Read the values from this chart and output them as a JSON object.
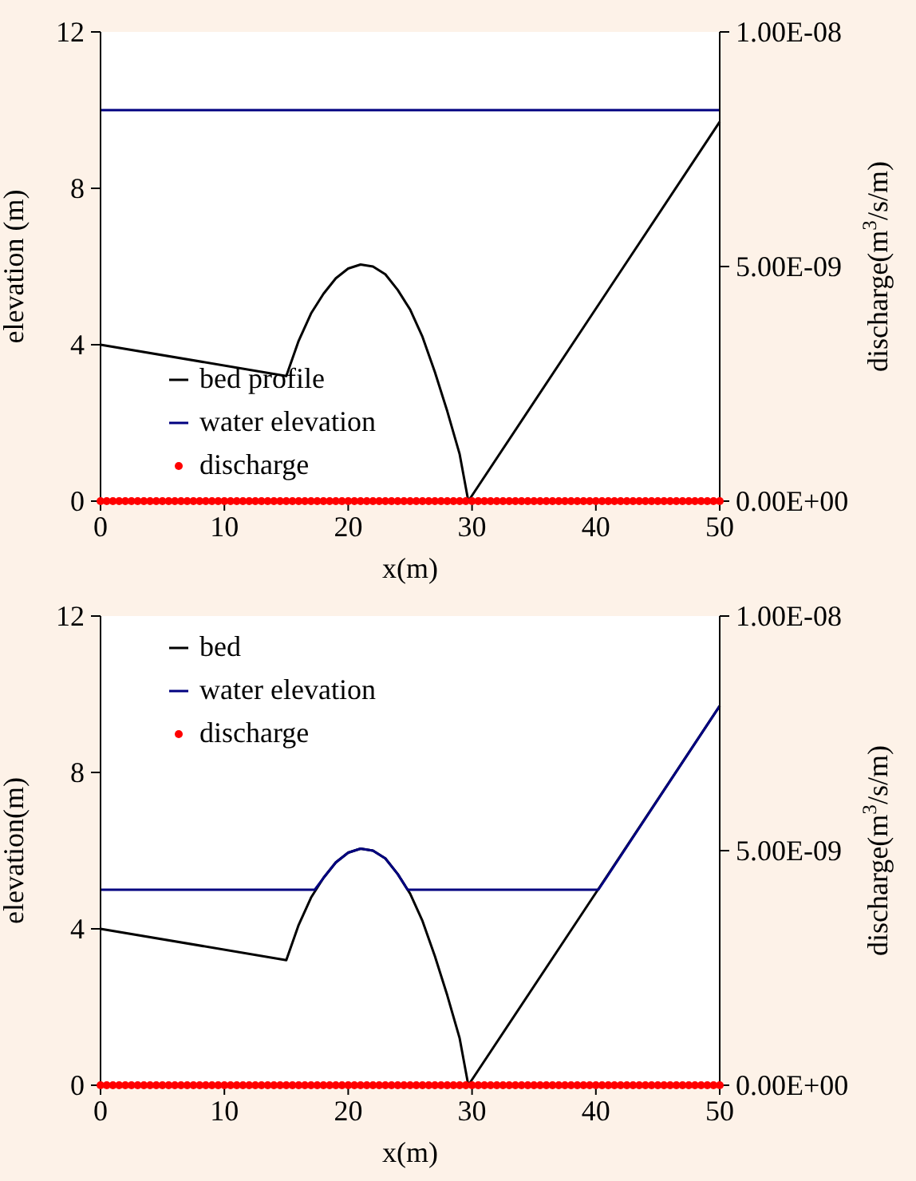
{
  "chart_data": [
    {
      "type": "line",
      "xlabel": "x(m)",
      "ylabel": "elevation (m)",
      "y2label": "discharge(m$^{3}$/s/m)",
      "xlim": [
        0,
        50
      ],
      "xticks": [
        0,
        10,
        20,
        30,
        40,
        50
      ],
      "ylim": [
        0,
        12
      ],
      "yticks": [
        0,
        4,
        8,
        12
      ],
      "y2lim": [
        0,
        1e-08
      ],
      "y2ticks": [
        {
          "value": 0,
          "label": "0.00E+00"
        },
        {
          "value": 5e-09,
          "label": "5.00E-09"
        },
        {
          "value": 1e-08,
          "label": "1.00E-08"
        }
      ],
      "legend": "bottom left",
      "grid": false,
      "series": [
        {
          "name": "bed profile",
          "color": "#000000",
          "x": [
            0,
            15,
            16,
            17,
            18,
            19,
            20,
            21,
            22,
            23,
            24,
            25,
            26,
            27,
            28,
            29,
            29.7,
            50
          ],
          "values": [
            4,
            3.2,
            4.1,
            4.8,
            5.3,
            5.7,
            5.95,
            6.05,
            6.0,
            5.8,
            5.4,
            4.9,
            4.2,
            3.3,
            2.3,
            1.2,
            0,
            9.7
          ]
        },
        {
          "name": "water elevation",
          "color": "#000080",
          "x": [
            0,
            50
          ],
          "values": [
            10,
            10
          ]
        },
        {
          "name": "discharge",
          "type": "scatter",
          "axis": "y2",
          "color": "#ff0000",
          "marker": "circle",
          "x": [
            0,
            0.5,
            1,
            1.5,
            2,
            2.5,
            3,
            3.5,
            4,
            4.5,
            5,
            5.5,
            6,
            6.5,
            7,
            7.5,
            8,
            8.5,
            9,
            9.5,
            10,
            10.5,
            11,
            11.5,
            12,
            12.5,
            13,
            13.5,
            14,
            14.5,
            15,
            15.5,
            16,
            16.5,
            17,
            17.5,
            18,
            18.5,
            19,
            19.5,
            20,
            20.5,
            21,
            21.5,
            22,
            22.5,
            23,
            23.5,
            24,
            24.5,
            25,
            25.5,
            26,
            26.5,
            27,
            27.5,
            28,
            28.5,
            29,
            29.5,
            30,
            30.5,
            31,
            31.5,
            32,
            32.5,
            33,
            33.5,
            34,
            34.5,
            35,
            35.5,
            36,
            36.5,
            37,
            37.5,
            38,
            38.5,
            39,
            39.5,
            40,
            40.5,
            41,
            41.5,
            42,
            42.5,
            43,
            43.5,
            44,
            44.5,
            45,
            45.5,
            46,
            46.5,
            47,
            47.5,
            48,
            48.5,
            49,
            49.5,
            50
          ],
          "values": [
            0,
            0,
            0,
            0,
            0,
            0,
            0,
            0,
            0,
            0,
            0,
            0,
            0,
            0,
            0,
            0,
            0,
            0,
            0,
            0,
            0,
            0,
            0,
            0,
            0,
            0,
            0,
            0,
            0,
            0,
            0,
            0,
            0,
            0,
            0,
            0,
            0,
            0,
            0,
            0,
            0,
            0,
            0,
            0,
            0,
            0,
            0,
            0,
            0,
            0,
            0,
            0,
            0,
            0,
            0,
            0,
            0,
            0,
            0,
            0,
            0,
            0,
            0,
            0,
            0,
            0,
            0,
            0,
            0,
            0,
            0,
            0,
            0,
            0,
            0,
            0,
            0,
            0,
            0,
            0,
            0,
            0,
            0,
            0,
            0,
            0,
            0,
            0,
            0,
            0,
            0,
            0,
            0,
            0,
            0,
            0,
            0,
            0,
            0,
            0,
            0
          ]
        }
      ]
    },
    {
      "type": "line",
      "xlabel": "x(m)",
      "ylabel": "elevation(m)",
      "y2label": "discharge(m$^{3}$/s/m)",
      "xlim": [
        0,
        50
      ],
      "xticks": [
        0,
        10,
        20,
        30,
        40,
        50
      ],
      "ylim": [
        0,
        12
      ],
      "yticks": [
        0,
        4,
        8,
        12
      ],
      "y2lim": [
        0,
        1e-08
      ],
      "y2ticks": [
        {
          "value": 0,
          "label": "0.00E+00"
        },
        {
          "value": 5e-09,
          "label": "5.00E-09"
        },
        {
          "value": 1e-08,
          "label": "1.00E-08"
        }
      ],
      "legend": "top left",
      "grid": false,
      "series": [
        {
          "name": "bed",
          "color": "#000000",
          "x": [
            0,
            15,
            16,
            17,
            18,
            19,
            20,
            21,
            22,
            23,
            24,
            25,
            26,
            27,
            28,
            29,
            29.7,
            50
          ],
          "values": [
            4,
            3.2,
            4.1,
            4.8,
            5.3,
            5.7,
            5.95,
            6.05,
            6.0,
            5.8,
            5.4,
            4.9,
            4.2,
            3.3,
            2.3,
            1.2,
            0,
            9.7
          ]
        },
        {
          "name": "water elevation",
          "color": "#000080",
          "x": [
            0,
            17.3,
            18,
            19,
            20,
            21,
            22,
            23,
            24,
            24.8,
            40.2,
            50
          ],
          "values": [
            5,
            5,
            5.3,
            5.7,
            5.95,
            6.05,
            6.0,
            5.8,
            5.4,
            5,
            5,
            9.7
          ]
        },
        {
          "name": "discharge",
          "type": "scatter",
          "axis": "y2",
          "color": "#ff0000",
          "marker": "circle",
          "x": [
            0,
            0.5,
            1,
            1.5,
            2,
            2.5,
            3,
            3.5,
            4,
            4.5,
            5,
            5.5,
            6,
            6.5,
            7,
            7.5,
            8,
            8.5,
            9,
            9.5,
            10,
            10.5,
            11,
            11.5,
            12,
            12.5,
            13,
            13.5,
            14,
            14.5,
            15,
            15.5,
            16,
            16.5,
            17,
            17.5,
            18,
            18.5,
            19,
            19.5,
            20,
            20.5,
            21,
            21.5,
            22,
            22.5,
            23,
            23.5,
            24,
            24.5,
            25,
            25.5,
            26,
            26.5,
            27,
            27.5,
            28,
            28.5,
            29,
            29.5,
            30,
            30.5,
            31,
            31.5,
            32,
            32.5,
            33,
            33.5,
            34,
            34.5,
            35,
            35.5,
            36,
            36.5,
            37,
            37.5,
            38,
            38.5,
            39,
            39.5,
            40,
            40.5,
            41,
            41.5,
            42,
            42.5,
            43,
            43.5,
            44,
            44.5,
            45,
            45.5,
            46,
            46.5,
            47,
            47.5,
            48,
            48.5,
            49,
            49.5,
            50
          ],
          "values": [
            0,
            0,
            0,
            0,
            0,
            0,
            0,
            0,
            0,
            0,
            0,
            0,
            0,
            0,
            0,
            0,
            0,
            0,
            0,
            0,
            0,
            0,
            0,
            0,
            0,
            0,
            0,
            0,
            0,
            0,
            0,
            0,
            0,
            0,
            0,
            0,
            0,
            0,
            0,
            0,
            0,
            0,
            0,
            0,
            0,
            0,
            0,
            0,
            0,
            0,
            0,
            0,
            0,
            0,
            0,
            0,
            0,
            0,
            0,
            0,
            0,
            0,
            0,
            0,
            0,
            0,
            0,
            0,
            0,
            0,
            0,
            0,
            0,
            0,
            0,
            0,
            0,
            0,
            0,
            0,
            0,
            0,
            0,
            0,
            0,
            0,
            0,
            0,
            0,
            0,
            0,
            0,
            0,
            0,
            0,
            0,
            0,
            0,
            0,
            0,
            0
          ]
        }
      ]
    }
  ]
}
